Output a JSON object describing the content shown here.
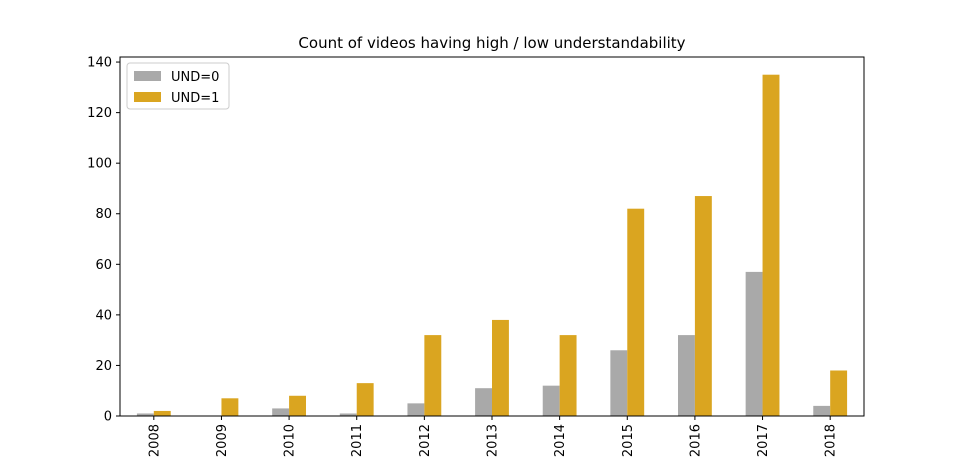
{
  "chart_data": {
    "type": "bar",
    "title": "Count of videos having high / low understandability",
    "xlabel": "",
    "ylabel": "",
    "categories": [
      "2008",
      "2009",
      "2010",
      "2011",
      "2012",
      "2013",
      "2014",
      "2015",
      "2016",
      "2017",
      "2018"
    ],
    "series": [
      {
        "name": "UND=0",
        "color": "#a9a9a9",
        "values": [
          1,
          0,
          3,
          1,
          5,
          11,
          12,
          26,
          32,
          57,
          4
        ]
      },
      {
        "name": "UND=1",
        "color": "#daa520",
        "values": [
          2,
          7,
          8,
          13,
          32,
          38,
          32,
          82,
          87,
          135,
          18
        ]
      }
    ],
    "ylim": [
      0,
      142
    ],
    "yticks": [
      0,
      20,
      40,
      60,
      80,
      100,
      120,
      140
    ],
    "x_tick_rotation": "vertical",
    "grid": false,
    "legend_position": "top-left"
  }
}
